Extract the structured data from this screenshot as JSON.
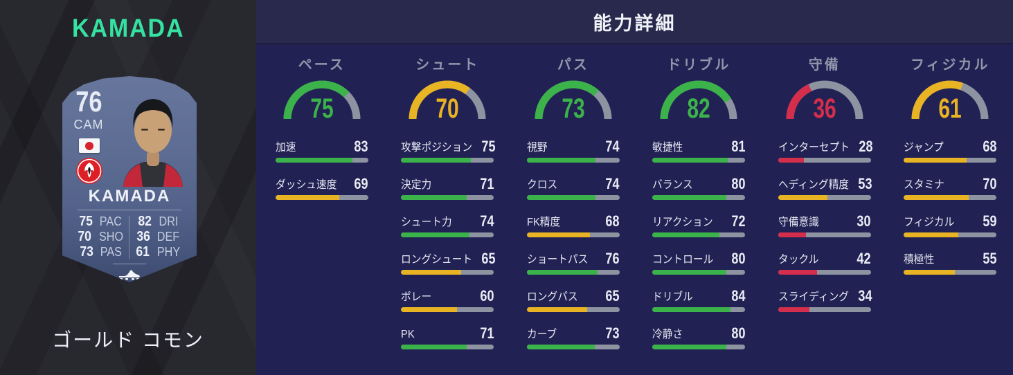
{
  "palette": {
    "green": "#3cb24a",
    "yellow": "#e9b424",
    "red": "#d42e4c",
    "track": "#8d93a0",
    "teal": "#35e2a2",
    "panel_bg": "#212253",
    "header_bg": "#29294e",
    "sidebar_bg": "#28282f",
    "card_bg": "#5d6c92"
  },
  "sidebar": {
    "title": "KAMADA",
    "card": {
      "rating": "76",
      "position": "CAM",
      "name": "KAMADA",
      "icons": {
        "nation": "japan-flag",
        "club": "eintracht-frankfurt-badge",
        "chem_style": "boot"
      },
      "quick_stats": [
        {
          "value": "75",
          "label": "PAC"
        },
        {
          "value": "82",
          "label": "DRI"
        },
        {
          "value": "70",
          "label": "SHO"
        },
        {
          "value": "36",
          "label": "DEF"
        },
        {
          "value": "73",
          "label": "PAS"
        },
        {
          "value": "61",
          "label": "PHY"
        }
      ]
    },
    "card_type": "ゴールド コモン"
  },
  "header": {
    "title": "能力詳細"
  },
  "chart_data": {
    "type": "gauges-with-bars",
    "value_range": [
      0,
      100
    ],
    "tier_colors": {
      "green": "high",
      "yellow": "mid",
      "red": "low"
    },
    "panels": [
      {
        "label": "ペース",
        "value": 75,
        "tier": "green",
        "stats": [
          {
            "label": "加速",
            "value": 83,
            "tier": "green"
          },
          {
            "label": "ダッシュ速度",
            "value": 69,
            "tier": "yellow"
          }
        ]
      },
      {
        "label": "シュート",
        "value": 70,
        "tier": "yellow",
        "stats": [
          {
            "label": "攻撃ポジション",
            "value": 75,
            "tier": "green"
          },
          {
            "label": "決定力",
            "value": 71,
            "tier": "green"
          },
          {
            "label": "シュート力",
            "value": 74,
            "tier": "green"
          },
          {
            "label": "ロングシュート",
            "value": 65,
            "tier": "yellow"
          },
          {
            "label": "ボレー",
            "value": 60,
            "tier": "yellow"
          },
          {
            "label": "PK",
            "value": 71,
            "tier": "green"
          }
        ]
      },
      {
        "label": "パス",
        "value": 73,
        "tier": "green",
        "stats": [
          {
            "label": "視野",
            "value": 74,
            "tier": "green"
          },
          {
            "label": "クロス",
            "value": 74,
            "tier": "green"
          },
          {
            "label": "FK精度",
            "value": 68,
            "tier": "yellow"
          },
          {
            "label": "ショートパス",
            "value": 76,
            "tier": "green"
          },
          {
            "label": "ロングパス",
            "value": 65,
            "tier": "yellow"
          },
          {
            "label": "カーブ",
            "value": 73,
            "tier": "green"
          }
        ]
      },
      {
        "label": "ドリブル",
        "value": 82,
        "tier": "green",
        "stats": [
          {
            "label": "敏捷性",
            "value": 81,
            "tier": "green"
          },
          {
            "label": "バランス",
            "value": 80,
            "tier": "green"
          },
          {
            "label": "リアクション",
            "value": 72,
            "tier": "green"
          },
          {
            "label": "コントロール",
            "value": 80,
            "tier": "green"
          },
          {
            "label": "ドリブル",
            "value": 84,
            "tier": "green"
          },
          {
            "label": "冷静さ",
            "value": 80,
            "tier": "green"
          }
        ]
      },
      {
        "label": "守備",
        "value": 36,
        "tier": "red",
        "stats": [
          {
            "label": "インターセプト",
            "value": 28,
            "tier": "red"
          },
          {
            "label": "ヘディング精度",
            "value": 53,
            "tier": "yellow"
          },
          {
            "label": "守備意識",
            "value": 30,
            "tier": "red"
          },
          {
            "label": "タックル",
            "value": 42,
            "tier": "red"
          },
          {
            "label": "スライディング",
            "value": 34,
            "tier": "red"
          }
        ]
      },
      {
        "label": "フィジカル",
        "value": 61,
        "tier": "yellow",
        "stats": [
          {
            "label": "ジャンプ",
            "value": 68,
            "tier": "yellow"
          },
          {
            "label": "スタミナ",
            "value": 70,
            "tier": "yellow"
          },
          {
            "label": "フィジカル",
            "value": 59,
            "tier": "yellow"
          },
          {
            "label": "積極性",
            "value": 55,
            "tier": "yellow"
          }
        ]
      }
    ]
  }
}
